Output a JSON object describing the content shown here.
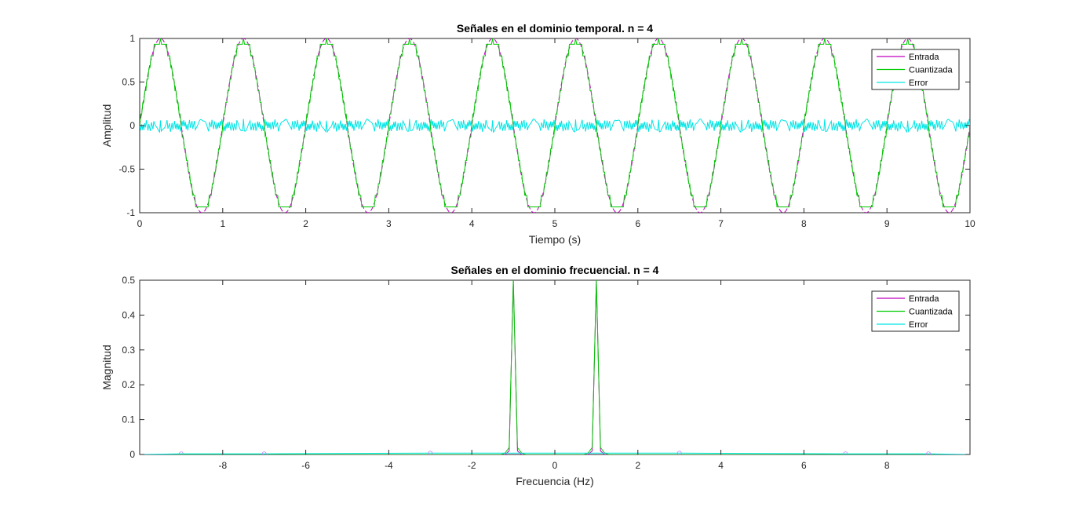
{
  "chart_data": [
    {
      "type": "line",
      "title": "Señales en el dominio temporal. n = 4",
      "xlabel": "Tiempo (s)",
      "ylabel": "Amplitud",
      "xlim": [
        0,
        10
      ],
      "ylim": [
        -1,
        1
      ],
      "xticks": [
        0,
        1,
        2,
        3,
        4,
        5,
        6,
        7,
        8,
        9,
        10
      ],
      "yticks": [
        -1,
        -0.5,
        0,
        0.5,
        1
      ],
      "xtick_labels": [
        "0",
        "1",
        "2",
        "3",
        "4",
        "5",
        "6",
        "7",
        "8",
        "9",
        "10"
      ],
      "ytick_labels": [
        "-1",
        "-0.5",
        "0",
        "0.5",
        "1"
      ],
      "grid": false,
      "legend_position": "top-right",
      "series": [
        {
          "name": "Entrada",
          "color": "#bf00bf",
          "description_points": {
            "frequency_hz": 1,
            "amplitude": 1,
            "phase": "sin"
          },
          "x": [
            0,
            0.125,
            0.25,
            0.375,
            0.5,
            0.625,
            0.75,
            0.875,
            1,
            1.125,
            1.25,
            1.375,
            1.5,
            1.625,
            1.75,
            1.875,
            2,
            2.125,
            2.25,
            2.375,
            2.5,
            2.625,
            2.75,
            2.875,
            3,
            3.125,
            3.25,
            3.375,
            3.5,
            3.625,
            3.75,
            3.875,
            4,
            4.125,
            4.25,
            4.375,
            4.5,
            4.625,
            4.75,
            4.875,
            5,
            5.125,
            5.25,
            5.375,
            5.5,
            5.625,
            5.75,
            5.875,
            6,
            6.125,
            6.25,
            6.375,
            6.5,
            6.625,
            6.75,
            6.875,
            7,
            7.125,
            7.25,
            7.375,
            7.5,
            7.625,
            7.75,
            7.875,
            8,
            8.125,
            8.25,
            8.375,
            8.5,
            8.625,
            8.75,
            8.875,
            9,
            9.125,
            9.25,
            9.375,
            9.5,
            9.625,
            9.75,
            9.875,
            10
          ],
          "y": [
            0,
            0.707,
            1,
            0.707,
            0,
            -0.707,
            -1,
            -0.707,
            0,
            0.707,
            1,
            0.707,
            0,
            -0.707,
            -1,
            -0.707,
            0,
            0.707,
            1,
            0.707,
            0,
            -0.707,
            -1,
            -0.707,
            0,
            0.707,
            1,
            0.707,
            0,
            -0.707,
            -1,
            -0.707,
            0,
            0.707,
            1,
            0.707,
            0,
            -0.707,
            -1,
            -0.707,
            0,
            0.707,
            1,
            0.707,
            0,
            -0.707,
            -1,
            -0.707,
            0,
            0.707,
            1,
            0.707,
            0,
            -0.707,
            -1,
            -0.707,
            0,
            0.707,
            1,
            0.707,
            0,
            -0.707,
            -1,
            -0.707,
            0,
            0.707,
            1,
            0.707,
            0,
            -0.707,
            -1,
            -0.707,
            0,
            0.707,
            1,
            0.707,
            0,
            -0.707,
            -1,
            -0.707,
            0
          ]
        },
        {
          "name": "Cuantizada",
          "color": "#00cc00",
          "x": [
            0,
            0.125,
            0.25,
            0.375,
            0.5,
            0.625,
            0.75,
            0.875,
            1,
            1.125,
            1.25,
            1.375,
            1.5,
            1.625,
            1.75,
            1.875,
            2,
            2.125,
            2.25,
            2.375,
            2.5,
            2.625,
            2.75,
            2.875,
            3,
            3.125,
            3.25,
            3.375,
            3.5,
            3.625,
            3.75,
            3.875,
            4,
            4.125,
            4.25,
            4.375,
            4.5,
            4.625,
            4.75,
            4.875,
            5,
            5.125,
            5.25,
            5.375,
            5.5,
            5.625,
            5.75,
            5.875,
            6,
            6.125,
            6.25,
            6.375,
            6.5,
            6.625,
            6.75,
            6.875,
            7,
            7.125,
            7.25,
            7.375,
            7.5,
            7.625,
            7.75,
            7.875,
            8,
            8.125,
            8.25,
            8.375,
            8.5,
            8.625,
            8.75,
            8.875,
            9,
            9.125,
            9.25,
            9.375,
            9.5,
            9.625,
            9.75,
            9.875,
            10
          ],
          "y": [
            0.067,
            0.733,
            1,
            0.733,
            0.067,
            -0.733,
            -1,
            -0.733,
            0.067,
            0.733,
            1,
            0.733,
            0.067,
            -0.733,
            -1,
            -0.733,
            0.067,
            0.733,
            1,
            0.733,
            0.067,
            -0.733,
            -1,
            -0.733,
            0.067,
            0.733,
            1,
            0.733,
            0.067,
            -0.733,
            -1,
            -0.733,
            0.067,
            0.733,
            1,
            0.733,
            0.067,
            -0.733,
            -1,
            -0.733,
            0.067,
            0.733,
            1,
            0.733,
            0.067,
            -0.733,
            -1,
            -0.733,
            0.067,
            0.733,
            1,
            0.733,
            0.067,
            -0.733,
            -1,
            -0.733,
            0.067,
            0.733,
            1,
            0.733,
            0.067,
            -0.733,
            -1,
            -0.733,
            0.067,
            0.733,
            1,
            0.733,
            0.067,
            -0.733,
            -1,
            -0.733,
            0.067,
            0.733,
            1,
            0.733,
            0.067,
            -0.733,
            -1,
            -0.733,
            0.067
          ]
        },
        {
          "name": "Error",
          "color": "#00e5e5",
          "x": [
            0,
            0.125,
            0.25,
            0.375,
            0.5,
            0.625,
            0.75,
            0.875,
            1,
            1.125,
            1.25,
            1.375,
            1.5,
            1.625,
            1.75,
            1.875,
            2,
            2.125,
            2.25,
            2.375,
            2.5,
            2.625,
            2.75,
            2.875,
            3,
            3.125,
            3.25,
            3.375,
            3.5,
            3.625,
            3.75,
            3.875,
            4,
            4.125,
            4.25,
            4.375,
            4.5,
            4.625,
            4.75,
            4.875,
            5,
            5.125,
            5.25,
            5.375,
            5.5,
            5.625,
            5.75,
            5.875,
            6,
            6.125,
            6.25,
            6.375,
            6.5,
            6.625,
            6.75,
            6.875,
            7,
            7.125,
            7.25,
            7.375,
            7.5,
            7.625,
            7.75,
            7.875,
            8,
            8.125,
            8.25,
            8.375,
            8.5,
            8.625,
            8.75,
            8.875,
            9,
            9.125,
            9.25,
            9.375,
            9.5,
            9.625,
            9.75,
            9.875,
            10
          ],
          "y": [
            0.067,
            0.026,
            0,
            0.026,
            0.067,
            -0.026,
            0,
            -0.026,
            0.067,
            0.026,
            0,
            0.026,
            0.067,
            -0.026,
            0,
            -0.026,
            0.067,
            0.026,
            0,
            0.026,
            0.067,
            -0.026,
            0,
            -0.026,
            0.067,
            0.026,
            0,
            0.026,
            0.067,
            -0.026,
            0,
            -0.026,
            0.067,
            0.026,
            0,
            0.026,
            0.067,
            -0.026,
            0,
            -0.026,
            0.067,
            0.026,
            0,
            0.026,
            0.067,
            -0.026,
            0,
            -0.026,
            0.067,
            0.026,
            0,
            0.026,
            0.067,
            -0.026,
            0,
            -0.026,
            0.067,
            0.026,
            0,
            0.026,
            0.067,
            -0.026,
            0,
            -0.026,
            0.067,
            0.026,
            0,
            0.026,
            0.067,
            -0.026,
            0,
            -0.026,
            0.067,
            0.026,
            0,
            0.026,
            0.067,
            -0.026,
            0,
            -0.026,
            0.067
          ]
        }
      ]
    },
    {
      "type": "line",
      "title": "Señales en el dominio frecuencial. n = 4",
      "xlabel": "Frecuencia (Hz)",
      "ylabel": "Magnitud",
      "xlim": [
        -10,
        10
      ],
      "ylim": [
        0,
        0.5
      ],
      "xticks": [
        -8,
        -6,
        -4,
        -2,
        0,
        2,
        4,
        6,
        8
      ],
      "yticks": [
        0,
        0.1,
        0.2,
        0.3,
        0.4,
        0.5
      ],
      "xtick_labels": [
        "-8",
        "-6",
        "-4",
        "-2",
        "0",
        "2",
        "4",
        "6",
        "8"
      ],
      "ytick_labels": [
        "0",
        "0.1",
        "0.2",
        "0.3",
        "0.4",
        "0.5"
      ],
      "grid": false,
      "legend_position": "top-right",
      "series": [
        {
          "name": "Entrada",
          "color": "#bf00bf",
          "x": [
            -10,
            -1.2,
            -1.1,
            -1.0,
            -0.9,
            -0.8,
            0.8,
            0.9,
            1.0,
            1.1,
            1.2,
            10
          ],
          "y": [
            0,
            0,
            0.01,
            0.5,
            0.01,
            0,
            0,
            0.01,
            0.5,
            0.01,
            0,
            0
          ]
        },
        {
          "name": "Cuantizada",
          "color": "#00cc00",
          "x": [
            -10,
            -1.3,
            -1.2,
            -1.1,
            -1.0,
            -0.9,
            -0.8,
            -0.7,
            0.7,
            0.8,
            0.9,
            1.0,
            1.1,
            1.2,
            1.3,
            10
          ],
          "y": [
            0,
            0,
            0.004,
            0.02,
            0.5,
            0.02,
            0.004,
            0,
            0,
            0.004,
            0.02,
            0.5,
            0.02,
            0.004,
            0,
            0
          ]
        },
        {
          "name": "Error",
          "color": "#00e5e5",
          "x": [
            -10,
            -9,
            -7,
            -3,
            3,
            7,
            9,
            10
          ],
          "y": [
            0,
            0.002,
            0.002,
            0.004,
            0.004,
            0.002,
            0.002,
            0
          ]
        }
      ]
    }
  ]
}
